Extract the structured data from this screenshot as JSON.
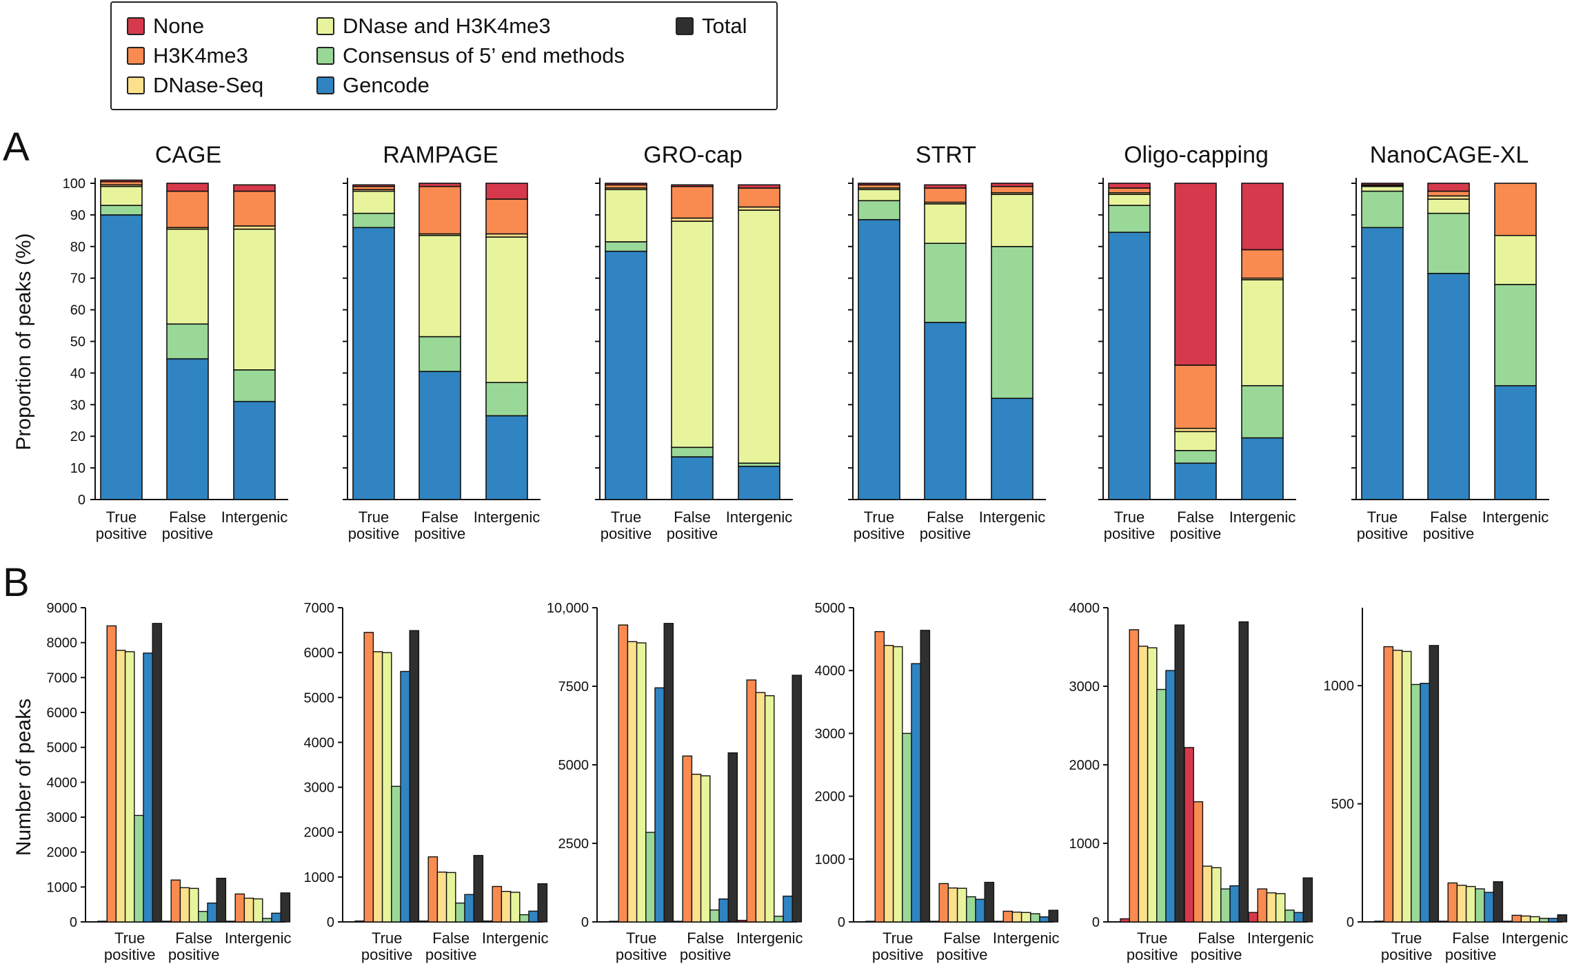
{
  "figure": {
    "panel_a_label": "A",
    "panel_b_label": "B",
    "legend": [
      {
        "key": "none",
        "label": "None",
        "color": "#d6394b"
      },
      {
        "key": "h3k4me3",
        "label": "H3K4me3",
        "color": "#f98b50"
      },
      {
        "key": "dnase",
        "label": "DNase-Seq",
        "color": "#fce08b"
      },
      {
        "key": "dnase_h3k4me3",
        "label": "DNase and H3K4me3",
        "color": "#e8f49c"
      },
      {
        "key": "consensus",
        "label": "Consensus of 5’ end methods",
        "color": "#9ad898"
      },
      {
        "key": "gencode",
        "label": "Gencode",
        "color": "#2f84c1"
      },
      {
        "key": "total",
        "label": "Total",
        "color": "#2f2f2f"
      }
    ]
  },
  "chart_data": [
    {
      "type": "bar",
      "stacked": true,
      "panel": "A",
      "ylabel": "Proportion of peaks (%)",
      "ylim": [
        0,
        100
      ],
      "yticks": [
        "0",
        "10",
        "20",
        "30",
        "40",
        "50",
        "60",
        "70",
        "80",
        "90",
        "100"
      ],
      "categories": [
        "True\npositive",
        "False\npositive",
        "Intergenic"
      ],
      "stack_order": [
        "Gencode",
        "Consensus of 5’ end methods",
        "DNase and H3K4me3",
        "DNase-Seq",
        "H3K4me3",
        "None"
      ],
      "charts": [
        {
          "title": "CAGE",
          "segments": [
            [
              90,
              3,
              6,
              0.5,
              1,
              0.5
            ],
            [
              44.5,
              11,
              30,
              0.5,
              11.5,
              2.5
            ],
            [
              31,
              10,
              44.5,
              1,
              11,
              2
            ]
          ]
        },
        {
          "title": "RAMPAGE",
          "segments": [
            [
              86,
              4.5,
              7,
              0.5,
              1,
              0.5
            ],
            [
              40.5,
              11,
              32,
              0.5,
              15,
              1
            ],
            [
              26.5,
              10.5,
              46,
              1,
              11,
              5
            ]
          ]
        },
        {
          "title": "GRO-cap",
          "segments": [
            [
              78.5,
              3,
              16.5,
              0.5,
              1,
              0.5
            ],
            [
              13.5,
              3,
              71.5,
              1,
              10,
              0.5
            ],
            [
              10.5,
              1,
              80,
              1,
              6,
              1
            ]
          ]
        },
        {
          "title": "STRT",
          "segments": [
            [
              88.5,
              6,
              3.5,
              0.5,
              1,
              0.5
            ],
            [
              56,
              25,
              12.5,
              0.5,
              4.5,
              1
            ],
            [
              32,
              48,
              16.5,
              0.5,
              2,
              1
            ]
          ]
        },
        {
          "title": "Oligo-capping",
          "segments": [
            [
              84.5,
              8.5,
              3.5,
              0.5,
              1.5,
              1.5
            ],
            [
              11.5,
              4,
              6,
              1,
              20,
              57.5
            ],
            [
              19.5,
              16.5,
              33.5,
              0.5,
              9,
              21
            ]
          ]
        },
        {
          "title": "NanoCAGE-XL",
          "segments": [
            [
              86,
              11.5,
              1.5,
              0.2,
              0.3,
              0.5
            ],
            [
              71.5,
              19,
              4.5,
              1,
              1.5,
              2.5
            ],
            [
              36,
              32,
              15.5,
              0,
              16.5,
              0
            ]
          ]
        }
      ]
    },
    {
      "type": "bar",
      "panel": "B",
      "ylabel": "Number of peaks",
      "categories": [
        "True\npositive",
        "False\npositive",
        "Intergenic"
      ],
      "series_order": [
        "None",
        "H3K4me3",
        "DNase-Seq",
        "DNase and H3K4me3",
        "Consensus of 5’ end methods",
        "Gencode",
        "Total"
      ],
      "charts": [
        {
          "ymax": 9000,
          "yticks": [
            0,
            1000,
            2000,
            3000,
            4000,
            5000,
            6000,
            7000,
            8000,
            9000
          ],
          "ytick_labels": [
            "0",
            "1000",
            "2000",
            "3000",
            "4000",
            "5000",
            "6000",
            "7000",
            "8000",
            "9000"
          ],
          "values": [
            [
              20,
              8480,
              7780,
              7740,
              3050,
              7700,
              8550
            ],
            [
              20,
              1200,
              980,
              960,
              300,
              540,
              1250
            ],
            [
              20,
              800,
              680,
              660,
              100,
              250,
              830
            ]
          ]
        },
        {
          "ymax": 7000,
          "yticks": [
            0,
            1000,
            2000,
            3000,
            4000,
            5000,
            6000,
            7000
          ],
          "ytick_labels": [
            "0",
            "1000",
            "2000",
            "3000",
            "4000",
            "5000",
            "6000",
            "7000"
          ],
          "values": [
            [
              20,
              6450,
              6020,
              6000,
              3020,
              5580,
              6490
            ],
            [
              20,
              1450,
              1110,
              1100,
              420,
              610,
              1480
            ],
            [
              20,
              790,
              680,
              660,
              160,
              240,
              850
            ]
          ]
        },
        {
          "ymax": 10000,
          "yticks": [
            0,
            2500,
            5000,
            7500,
            10000
          ],
          "ytick_labels": [
            "0",
            "2500",
            "5000",
            "7500",
            "10,000"
          ],
          "values": [
            [
              20,
              9450,
              8920,
              8880,
              2850,
              7450,
              9500
            ],
            [
              20,
              5280,
              4700,
              4650,
              380,
              730,
              5380
            ],
            [
              50,
              7700,
              7300,
              7200,
              180,
              820,
              7850
            ]
          ]
        },
        {
          "ymax": 5000,
          "yticks": [
            0,
            1000,
            2000,
            3000,
            4000,
            5000
          ],
          "ytick_labels": [
            "0",
            "1000",
            "2000",
            "3000",
            "4000",
            "5000"
          ],
          "values": [
            [
              10,
              4620,
              4400,
              4380,
              3000,
              4110,
              4640
            ],
            [
              10,
              610,
              540,
              535,
              400,
              360,
              630
            ],
            [
              10,
              170,
              155,
              150,
              130,
              80,
              185
            ]
          ]
        },
        {
          "ymax": 4000,
          "yticks": [
            0,
            1000,
            2000,
            3000,
            4000
          ],
          "ytick_labels": [
            "0",
            "1000",
            "2000",
            "3000",
            "4000"
          ],
          "values": [
            [
              40,
              3720,
              3510,
              3490,
              2960,
              3200,
              3780
            ],
            [
              2220,
              1530,
              710,
              690,
              420,
              460,
              3820
            ],
            [
              120,
              420,
              370,
              360,
              150,
              120,
              560
            ]
          ]
        },
        {
          "ymax": 1330,
          "yticks": [
            0,
            500,
            1000
          ],
          "ytick_labels": [
            "0",
            "500",
            "1000"
          ],
          "values": [
            [
              3,
              1165,
              1150,
              1145,
              1005,
              1010,
              1170
            ],
            [
              3,
              165,
              155,
              150,
              140,
              125,
              170
            ],
            [
              3,
              28,
              25,
              22,
              15,
              15,
              30
            ]
          ]
        }
      ]
    }
  ]
}
